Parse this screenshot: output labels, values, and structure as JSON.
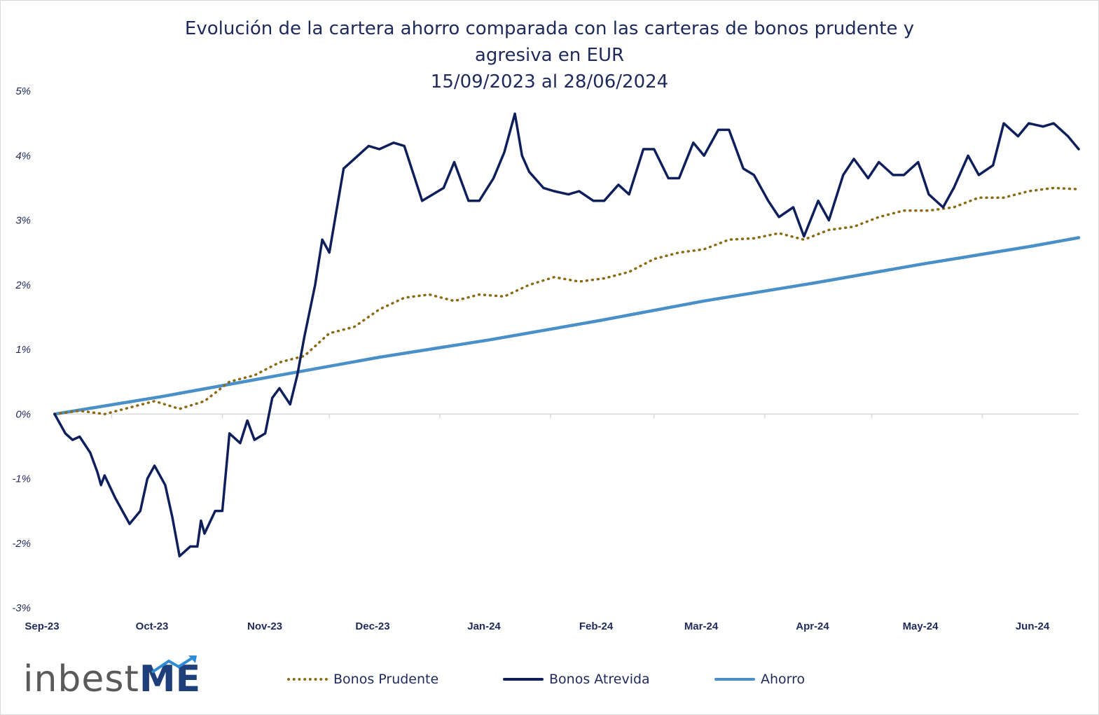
{
  "title_lines": [
    "Evolución de la cartera ahorro comparada con las carteras de bonos prudente y",
    "agresiva en EUR",
    "15/09/2023 al 28/06/2024"
  ],
  "legend": {
    "prudente": "Bonos Prudente",
    "atrevida": "Bonos Atrevida",
    "ahorro": "Ahorro"
  },
  "logo": {
    "text": "inbest",
    "accent": "ME",
    "icon": "trend-arrow-icon"
  },
  "colors": {
    "prudente": "#8a6a12",
    "atrevida": "#0e1f5b",
    "ahorro": "#4a90c8",
    "title": "#1f2a5c",
    "grid": "#d9d9d9"
  },
  "chart_data": {
    "type": "line",
    "title": "Evolución de la cartera ahorro comparada con las carteras de bonos prudente y agresiva en EUR 15/09/2023 al 28/06/2024",
    "ylim": [
      -3,
      5
    ],
    "yticks": [
      -3,
      -2,
      -1,
      0,
      1,
      2,
      3,
      4,
      5
    ],
    "ytick_labels": [
      "-3%",
      "-2%",
      "-1%",
      "0%",
      "1%",
      "2%",
      "3%",
      "4%",
      "5%"
    ],
    "grid": false,
    "legend_position": "bottom",
    "x_categories": [
      "Sep-23",
      "Oct-23",
      "Nov-23",
      "Dec-23",
      "Jan-24",
      "Feb-24",
      "Mar-24",
      "Apr-24",
      "May-24",
      "Jun-24"
    ],
    "series": [
      {
        "name": "Bonos Prudente",
        "style": "dotted",
        "points": [
          [
            "2023-09-15",
            0.0
          ],
          [
            "2023-09-22",
            0.05
          ],
          [
            "2023-09-29",
            0.0
          ],
          [
            "2023-10-06",
            0.1
          ],
          [
            "2023-10-13",
            0.2
          ],
          [
            "2023-10-20",
            0.08
          ],
          [
            "2023-10-27",
            0.2
          ],
          [
            "2023-11-03",
            0.5
          ],
          [
            "2023-11-10",
            0.6
          ],
          [
            "2023-11-17",
            0.8
          ],
          [
            "2023-11-24",
            0.9
          ],
          [
            "2023-12-01",
            1.25
          ],
          [
            "2023-12-08",
            1.35
          ],
          [
            "2023-12-15",
            1.62
          ],
          [
            "2023-12-22",
            1.8
          ],
          [
            "2023-12-29",
            1.85
          ],
          [
            "2024-01-05",
            1.75
          ],
          [
            "2024-01-12",
            1.85
          ],
          [
            "2024-01-19",
            1.82
          ],
          [
            "2024-01-26",
            2.0
          ],
          [
            "2024-02-02",
            2.12
          ],
          [
            "2024-02-09",
            2.05
          ],
          [
            "2024-02-16",
            2.1
          ],
          [
            "2024-02-23",
            2.2
          ],
          [
            "2024-03-01",
            2.4
          ],
          [
            "2024-03-08",
            2.5
          ],
          [
            "2024-03-15",
            2.55
          ],
          [
            "2024-03-22",
            2.7
          ],
          [
            "2024-03-29",
            2.72
          ],
          [
            "2024-04-05",
            2.8
          ],
          [
            "2024-04-12",
            2.7
          ],
          [
            "2024-04-19",
            2.85
          ],
          [
            "2024-04-26",
            2.9
          ],
          [
            "2024-05-03",
            3.05
          ],
          [
            "2024-05-10",
            3.15
          ],
          [
            "2024-05-17",
            3.15
          ],
          [
            "2024-05-24",
            3.2
          ],
          [
            "2024-05-31",
            3.35
          ],
          [
            "2024-06-07",
            3.35
          ],
          [
            "2024-06-14",
            3.45
          ],
          [
            "2024-06-21",
            3.5
          ],
          [
            "2024-06-28",
            3.48
          ]
        ]
      },
      {
        "name": "Bonos Atrevida",
        "style": "solid",
        "points": [
          [
            "2023-09-15",
            0.0
          ],
          [
            "2023-09-18",
            -0.3
          ],
          [
            "2023-09-20",
            -0.4
          ],
          [
            "2023-09-22",
            -0.35
          ],
          [
            "2023-09-25",
            -0.6
          ],
          [
            "2023-09-27",
            -0.9
          ],
          [
            "2023-09-28",
            -1.1
          ],
          [
            "2023-09-29",
            -0.95
          ],
          [
            "2023-10-02",
            -1.3
          ],
          [
            "2023-10-04",
            -1.5
          ],
          [
            "2023-10-06",
            -1.7
          ],
          [
            "2023-10-09",
            -1.5
          ],
          [
            "2023-10-11",
            -1.0
          ],
          [
            "2023-10-13",
            -0.8
          ],
          [
            "2023-10-16",
            -1.1
          ],
          [
            "2023-10-18",
            -1.6
          ],
          [
            "2023-10-20",
            -2.2
          ],
          [
            "2023-10-23",
            -2.05
          ],
          [
            "2023-10-25",
            -2.05
          ],
          [
            "2023-10-26",
            -1.65
          ],
          [
            "2023-10-27",
            -1.85
          ],
          [
            "2023-10-30",
            -1.5
          ],
          [
            "2023-11-01",
            -1.5
          ],
          [
            "2023-11-03",
            -0.3
          ],
          [
            "2023-11-06",
            -0.45
          ],
          [
            "2023-11-08",
            -0.1
          ],
          [
            "2023-11-10",
            -0.4
          ],
          [
            "2023-11-13",
            -0.3
          ],
          [
            "2023-11-15",
            0.25
          ],
          [
            "2023-11-17",
            0.4
          ],
          [
            "2023-11-20",
            0.15
          ],
          [
            "2023-11-22",
            0.6
          ],
          [
            "2023-11-24",
            1.2
          ],
          [
            "2023-11-27",
            2.0
          ],
          [
            "2023-11-29",
            2.7
          ],
          [
            "2023-12-01",
            2.5
          ],
          [
            "2023-12-05",
            3.8
          ],
          [
            "2023-12-08",
            3.95
          ],
          [
            "2023-12-12",
            4.15
          ],
          [
            "2023-12-15",
            4.1
          ],
          [
            "2023-12-19",
            4.2
          ],
          [
            "2023-12-22",
            4.15
          ],
          [
            "2023-12-27",
            3.3
          ],
          [
            "2024-01-02",
            3.5
          ],
          [
            "2024-01-05",
            3.9
          ],
          [
            "2024-01-09",
            3.3
          ],
          [
            "2024-01-12",
            3.3
          ],
          [
            "2024-01-16",
            3.65
          ],
          [
            "2024-01-19",
            4.05
          ],
          [
            "2024-01-22",
            4.65
          ],
          [
            "2024-01-24",
            4.0
          ],
          [
            "2024-01-26",
            3.75
          ],
          [
            "2024-01-30",
            3.5
          ],
          [
            "2024-02-02",
            3.45
          ],
          [
            "2024-02-06",
            3.4
          ],
          [
            "2024-02-09",
            3.45
          ],
          [
            "2024-02-13",
            3.3
          ],
          [
            "2024-02-16",
            3.3
          ],
          [
            "2024-02-20",
            3.55
          ],
          [
            "2024-02-23",
            3.4
          ],
          [
            "2024-02-27",
            4.1
          ],
          [
            "2024-03-01",
            4.1
          ],
          [
            "2024-03-05",
            3.65
          ],
          [
            "2024-03-08",
            3.65
          ],
          [
            "2024-03-12",
            4.2
          ],
          [
            "2024-03-15",
            4.0
          ],
          [
            "2024-03-19",
            4.4
          ],
          [
            "2024-03-22",
            4.4
          ],
          [
            "2024-03-26",
            3.8
          ],
          [
            "2024-03-29",
            3.7
          ],
          [
            "2024-04-02",
            3.3
          ],
          [
            "2024-04-05",
            3.05
          ],
          [
            "2024-04-09",
            3.2
          ],
          [
            "2024-04-12",
            2.75
          ],
          [
            "2024-04-16",
            3.3
          ],
          [
            "2024-04-19",
            3.0
          ],
          [
            "2024-04-23",
            3.7
          ],
          [
            "2024-04-26",
            3.95
          ],
          [
            "2024-04-30",
            3.65
          ],
          [
            "2024-05-03",
            3.9
          ],
          [
            "2024-05-07",
            3.7
          ],
          [
            "2024-05-10",
            3.7
          ],
          [
            "2024-05-14",
            3.9
          ],
          [
            "2024-05-17",
            3.4
          ],
          [
            "2024-05-21",
            3.2
          ],
          [
            "2024-05-24",
            3.5
          ],
          [
            "2024-05-28",
            4.0
          ],
          [
            "2024-05-31",
            3.7
          ],
          [
            "2024-06-04",
            3.85
          ],
          [
            "2024-06-07",
            4.5
          ],
          [
            "2024-06-11",
            4.3
          ],
          [
            "2024-06-14",
            4.5
          ],
          [
            "2024-06-18",
            4.45
          ],
          [
            "2024-06-21",
            4.5
          ],
          [
            "2024-06-25",
            4.3
          ],
          [
            "2024-06-28",
            4.1
          ]
        ]
      },
      {
        "name": "Ahorro",
        "style": "solid",
        "points": [
          [
            "2023-09-15",
            0.0
          ],
          [
            "2023-10-15",
            0.27
          ],
          [
            "2023-11-15",
            0.58
          ],
          [
            "2023-12-15",
            0.88
          ],
          [
            "2024-01-15",
            1.15
          ],
          [
            "2024-02-15",
            1.45
          ],
          [
            "2024-03-15",
            1.75
          ],
          [
            "2024-04-15",
            2.03
          ],
          [
            "2024-05-15",
            2.32
          ],
          [
            "2024-06-15",
            2.6
          ],
          [
            "2024-06-28",
            2.73
          ]
        ]
      }
    ]
  }
}
